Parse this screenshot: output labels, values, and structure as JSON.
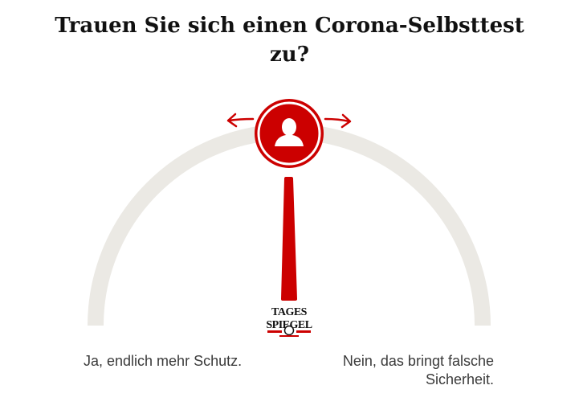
{
  "poll": {
    "question": "Trauen Sie sich einen Corona-Selbsttest zu?",
    "answer_left": "Ja, endlich mehr Schutz.",
    "answer_right": "Nein, das bringt falsche Sicherheit.",
    "needle_position": 0.5
  },
  "brand": {
    "logo_line1": "TAGES",
    "logo_line2": "SPIEGEL"
  },
  "colors": {
    "accent": "#cc0000",
    "gauge_track": "#ebe9e4",
    "text": "#3a3a3a",
    "title": "#111111"
  },
  "icons": {
    "handle": "user-icon",
    "left_arrow": "arrow-left-icon",
    "right_arrow": "arrow-right-icon"
  }
}
